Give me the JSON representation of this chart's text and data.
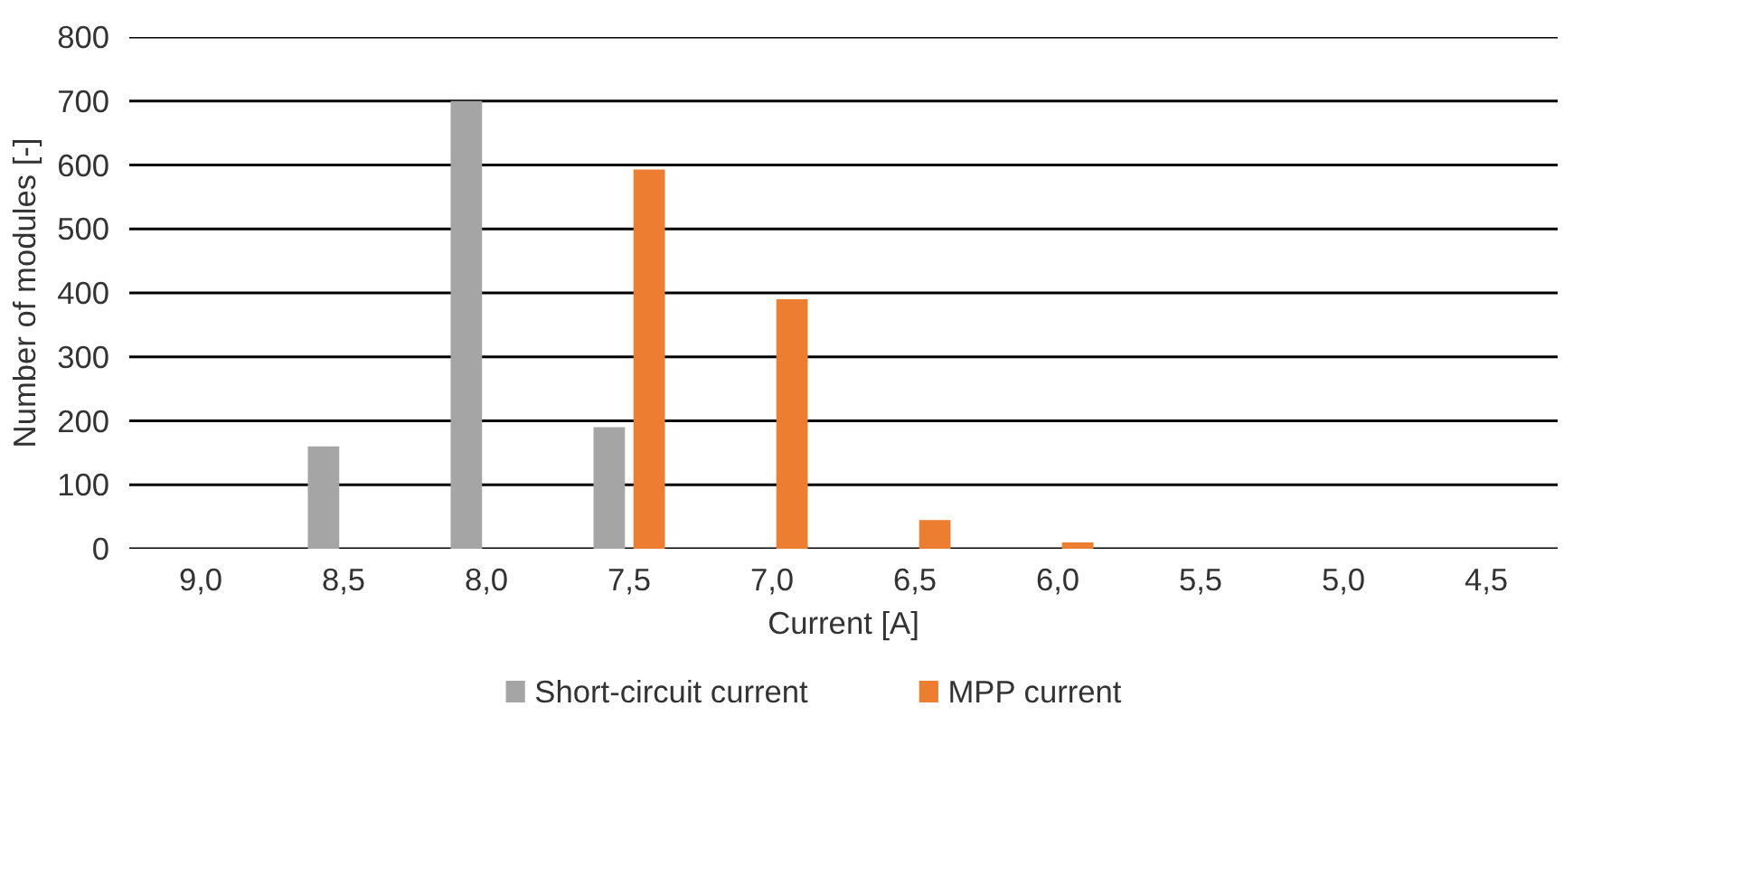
{
  "chart_data": {
    "type": "bar",
    "categories": [
      "9,0",
      "8,5",
      "8,0",
      "7,5",
      "7,0",
      "6,5",
      "6,0",
      "5,5",
      "5,0",
      "4,5"
    ],
    "xlabel": "Current [A]",
    "ylabel": "Number of modules [-]",
    "series": [
      {
        "name": "Short-circuit current",
        "color": "#a5a5a5",
        "values": [
          0,
          160,
          700,
          190,
          0,
          0,
          0,
          0,
          0,
          0
        ]
      },
      {
        "name": "MPP current",
        "color": "#ed7d31",
        "values": [
          0,
          0,
          0,
          593,
          390,
          45,
          10,
          0,
          0,
          0
        ]
      }
    ],
    "ylim": [
      0,
      800
    ],
    "yticks": [
      0,
      100,
      200,
      300,
      400,
      500,
      600,
      700,
      800
    ],
    "grid": "y",
    "legend": "bottom"
  }
}
